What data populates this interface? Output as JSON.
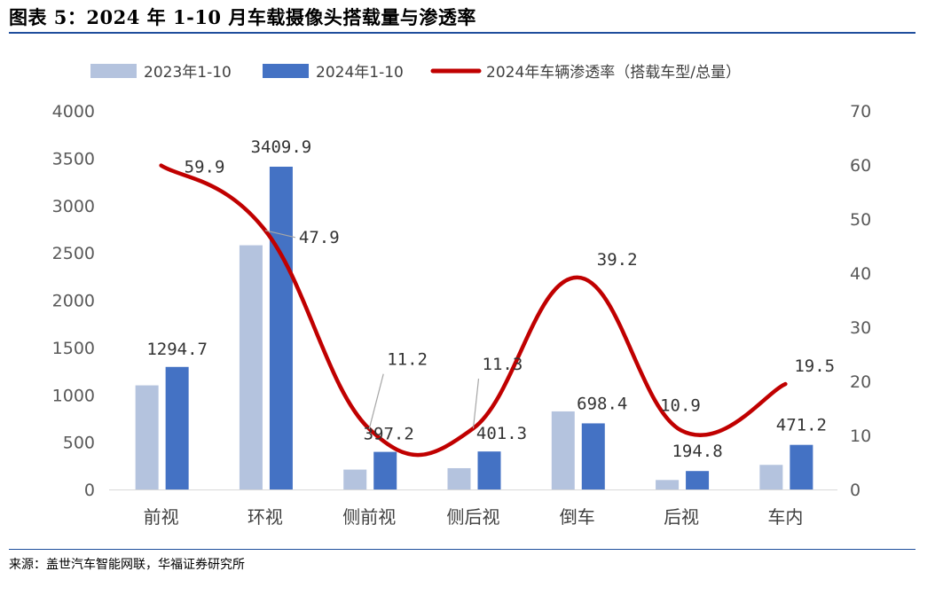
{
  "header": {
    "title": "图表 5：2024 年 1-10 月车载摄像头搭载量与渗透率"
  },
  "footer": {
    "source": "来源：盖世汽车智能网联，华福证券研究所"
  },
  "chart_data": {
    "type": "bar",
    "categories": [
      "前视",
      "环视",
      "侧前视",
      "侧后视",
      "倒车",
      "后视",
      "车内"
    ],
    "series": [
      {
        "name": "2023年1-10",
        "type": "bar",
        "axis": "left",
        "color": "#b4c3de",
        "values": [
          1100,
          2580,
          210,
          225,
          825,
          100,
          260
        ]
      },
      {
        "name": "2024年1-10",
        "type": "bar",
        "axis": "left",
        "color": "#4472c4",
        "values": [
          1294.7,
          3409.9,
          397.2,
          401.3,
          698.4,
          194.8,
          471.2
        ],
        "labels": [
          "1294.7",
          "3409.9",
          "397.2",
          "401.3",
          "698.4",
          "194.8",
          "471.2"
        ]
      },
      {
        "name": "2024年车辆渗透率（搭载车型/总量）",
        "type": "line",
        "axis": "right",
        "color": "#c00000",
        "values": [
          59.9,
          47.9,
          11.2,
          11.3,
          39.2,
          10.9,
          19.5
        ],
        "labels": [
          "59.9",
          "47.9",
          "11.2",
          "11.3",
          "39.2",
          "10.9",
          "19.5"
        ]
      }
    ],
    "y_left": {
      "min": 0,
      "max": 4000,
      "ticks": [
        "0",
        "500",
        "1000",
        "1500",
        "2000",
        "2500",
        "3000",
        "3500",
        "4000"
      ]
    },
    "y_right": {
      "min": 0,
      "max": 70,
      "ticks": [
        "0",
        "10",
        "20",
        "30",
        "40",
        "50",
        "60",
        "70"
      ]
    },
    "grid": false,
    "legend": "top"
  }
}
